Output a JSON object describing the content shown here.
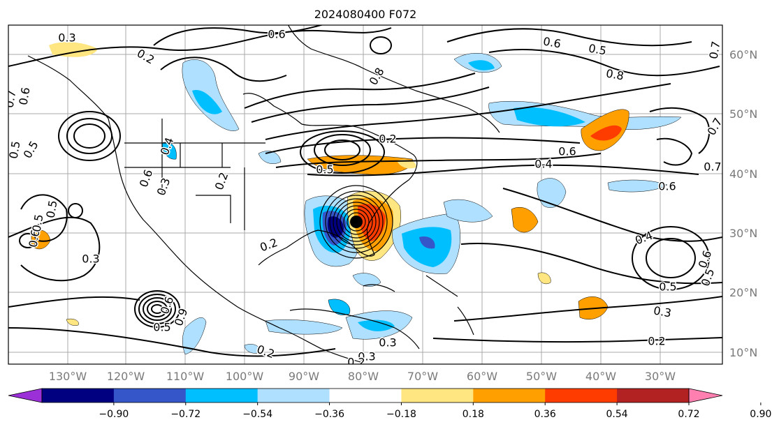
{
  "map": {
    "title": "2024080400 F072",
    "lon_labels": [
      "130°W",
      "120°W",
      "110°W",
      "100°W",
      "90°W",
      "80°W",
      "70°W",
      "60°W",
      "50°W",
      "40°W",
      "30°W"
    ],
    "lat_labels": [
      "60°N",
      "50°N",
      "40°N",
      "30°N",
      "20°N",
      "10°N"
    ],
    "colorbar": {
      "levels": [
        "−0.90",
        "−0.72",
        "−0.54",
        "−0.36",
        "−0.18",
        "0.18",
        "0.36",
        "0.54",
        "0.72",
        "0.90"
      ],
      "colors": [
        "#9b30d9",
        "#000080",
        "#3556c8",
        "#00bfff",
        "#b0e0ff",
        "#ffffff",
        "#ffe680",
        "#ffa000",
        "#ff3c00",
        "#b22222",
        "#ff80b0"
      ]
    },
    "contour_labels": [
      "0.3",
      "0.2",
      "0.6",
      "0.8",
      "0.6",
      "0.7",
      "0.5",
      "0.8",
      "0.7",
      "0.6",
      "0.4",
      "0.6",
      "0.5",
      "0.2",
      "0.5",
      "0.6",
      "0.3",
      "0.2",
      "0.2",
      "0.4",
      "0.5",
      "0.7",
      "0.6",
      "0.7",
      "0.4",
      "0.6",
      "0.5",
      "0.5",
      "0.3",
      "0.6",
      "0.5",
      "0.9",
      "0.5",
      "0.6",
      "0.3",
      "0.3",
      "0.5",
      "0.2",
      "0.2",
      "0.3",
      "0.2"
    ]
  }
}
